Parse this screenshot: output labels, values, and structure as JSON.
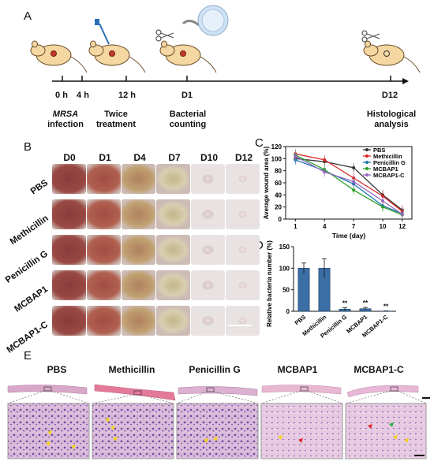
{
  "panels": {
    "a": "A",
    "b": "B",
    "c": "C",
    "d": "D",
    "e": "E"
  },
  "timeline": {
    "ticks": [
      "0 h",
      "4 h",
      "12 h",
      "D1",
      "D12"
    ],
    "events": [
      {
        "line1": "MRSA",
        "line2": "infection"
      },
      {
        "line1": "Twice",
        "line2": "treatment"
      },
      {
        "line1": "Bacterial",
        "line2": "counting"
      },
      {
        "line1": "Histological",
        "line2": "analysis"
      }
    ]
  },
  "wound_grid": {
    "days": [
      "D0",
      "D1",
      "D4",
      "D7",
      "D10",
      "D12"
    ],
    "groups": [
      "PBS",
      "Methicillin",
      "Penicillin G",
      "MCBAP1",
      "MCBAP1-C"
    ]
  },
  "chart_data": [
    {
      "type": "line",
      "xlabel": "Time (day)",
      "ylabel": "Average wound area (%)",
      "x": [
        1,
        4,
        7,
        10,
        12
      ],
      "xlim": [
        0,
        13
      ],
      "ylim": [
        0,
        120
      ],
      "yticks": [
        0,
        20,
        40,
        60,
        80,
        100,
        120
      ],
      "legend_position": "top-right",
      "series": [
        {
          "name": "PBS",
          "color": "#333333",
          "values": [
            100,
            95,
            85,
            40,
            15
          ]
        },
        {
          "name": "Methicillin",
          "color": "#d62728",
          "values": [
            108,
            98,
            68,
            38,
            13
          ]
        },
        {
          "name": "Penicillin G",
          "color": "#1f77b4",
          "values": [
            98,
            80,
            58,
            22,
            9
          ]
        },
        {
          "name": "MCBAP1",
          "color": "#2ca02c",
          "values": [
            106,
            82,
            48,
            20,
            7
          ]
        },
        {
          "name": "MCBAP1-C",
          "color": "#9467bd",
          "values": [
            104,
            78,
            62,
            30,
            8
          ]
        }
      ]
    },
    {
      "type": "bar",
      "ylabel": "Relative bacteria number (%)",
      "categories": [
        "PBS",
        "Methicillin",
        "Penicillin G",
        "MCBAP1",
        "MCBAP1-C"
      ],
      "values": [
        100,
        100,
        5,
        6,
        0.5
      ],
      "errors": [
        12,
        22,
        3,
        3,
        0.3
      ],
      "ylim": [
        0,
        150
      ],
      "yticks": [
        0,
        50,
        100,
        150
      ],
      "significance": [
        "",
        "",
        "**",
        "**",
        "**"
      ],
      "bar_color": "#3a6ea5"
    }
  ],
  "histology": {
    "groups": [
      "PBS",
      "Methicillin",
      "Penicillin G",
      "MCBAP1",
      "MCBAP1-C"
    ]
  }
}
